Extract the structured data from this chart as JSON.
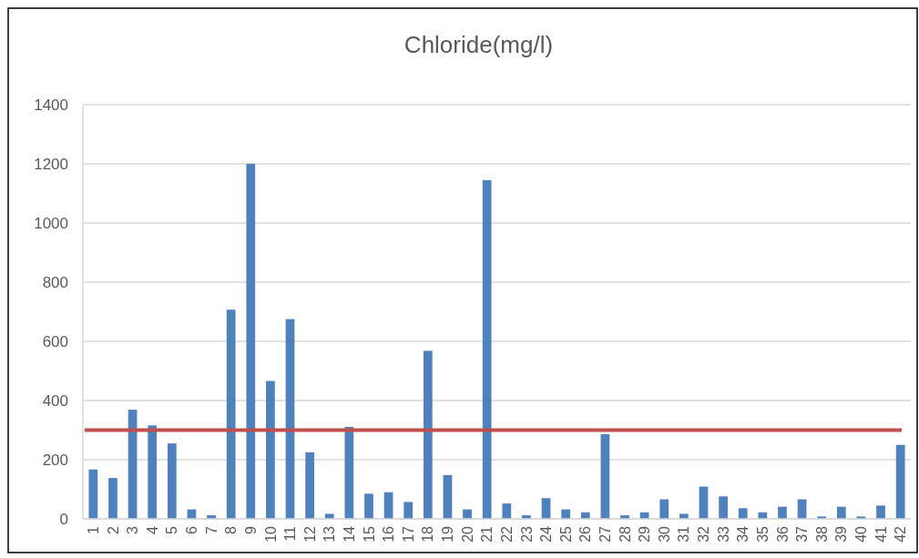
{
  "chart_data": {
    "type": "bar",
    "title": "Chloride(mg/l)",
    "categories": [
      "1",
      "2",
      "3",
      "4",
      "5",
      "6",
      "7",
      "8",
      "9",
      "10",
      "11",
      "12",
      "13",
      "14",
      "15",
      "16",
      "17",
      "18",
      "19",
      "20",
      "21",
      "22",
      "23",
      "24",
      "25",
      "26",
      "27",
      "28",
      "29",
      "30",
      "31",
      "32",
      "33",
      "34",
      "35",
      "36",
      "37",
      "38",
      "39",
      "40",
      "41",
      "42"
    ],
    "values": [
      167,
      138,
      369,
      316,
      255,
      32,
      12,
      707,
      1200,
      466,
      675,
      225,
      17,
      311,
      85,
      90,
      57,
      568,
      148,
      32,
      1145,
      52,
      12,
      70,
      32,
      22,
      286,
      12,
      22,
      66,
      17,
      109,
      76,
      36,
      22,
      41,
      66,
      8,
      41,
      8,
      45,
      250
    ],
    "color": "#4f81bd",
    "ylim": [
      0,
      1400
    ],
    "yticks": [
      0,
      200,
      400,
      600,
      800,
      1000,
      1200,
      1400
    ],
    "grid": "y",
    "ref_lines": [
      {
        "axis": "y",
        "value": 300,
        "color": "#c0504d"
      }
    ]
  }
}
